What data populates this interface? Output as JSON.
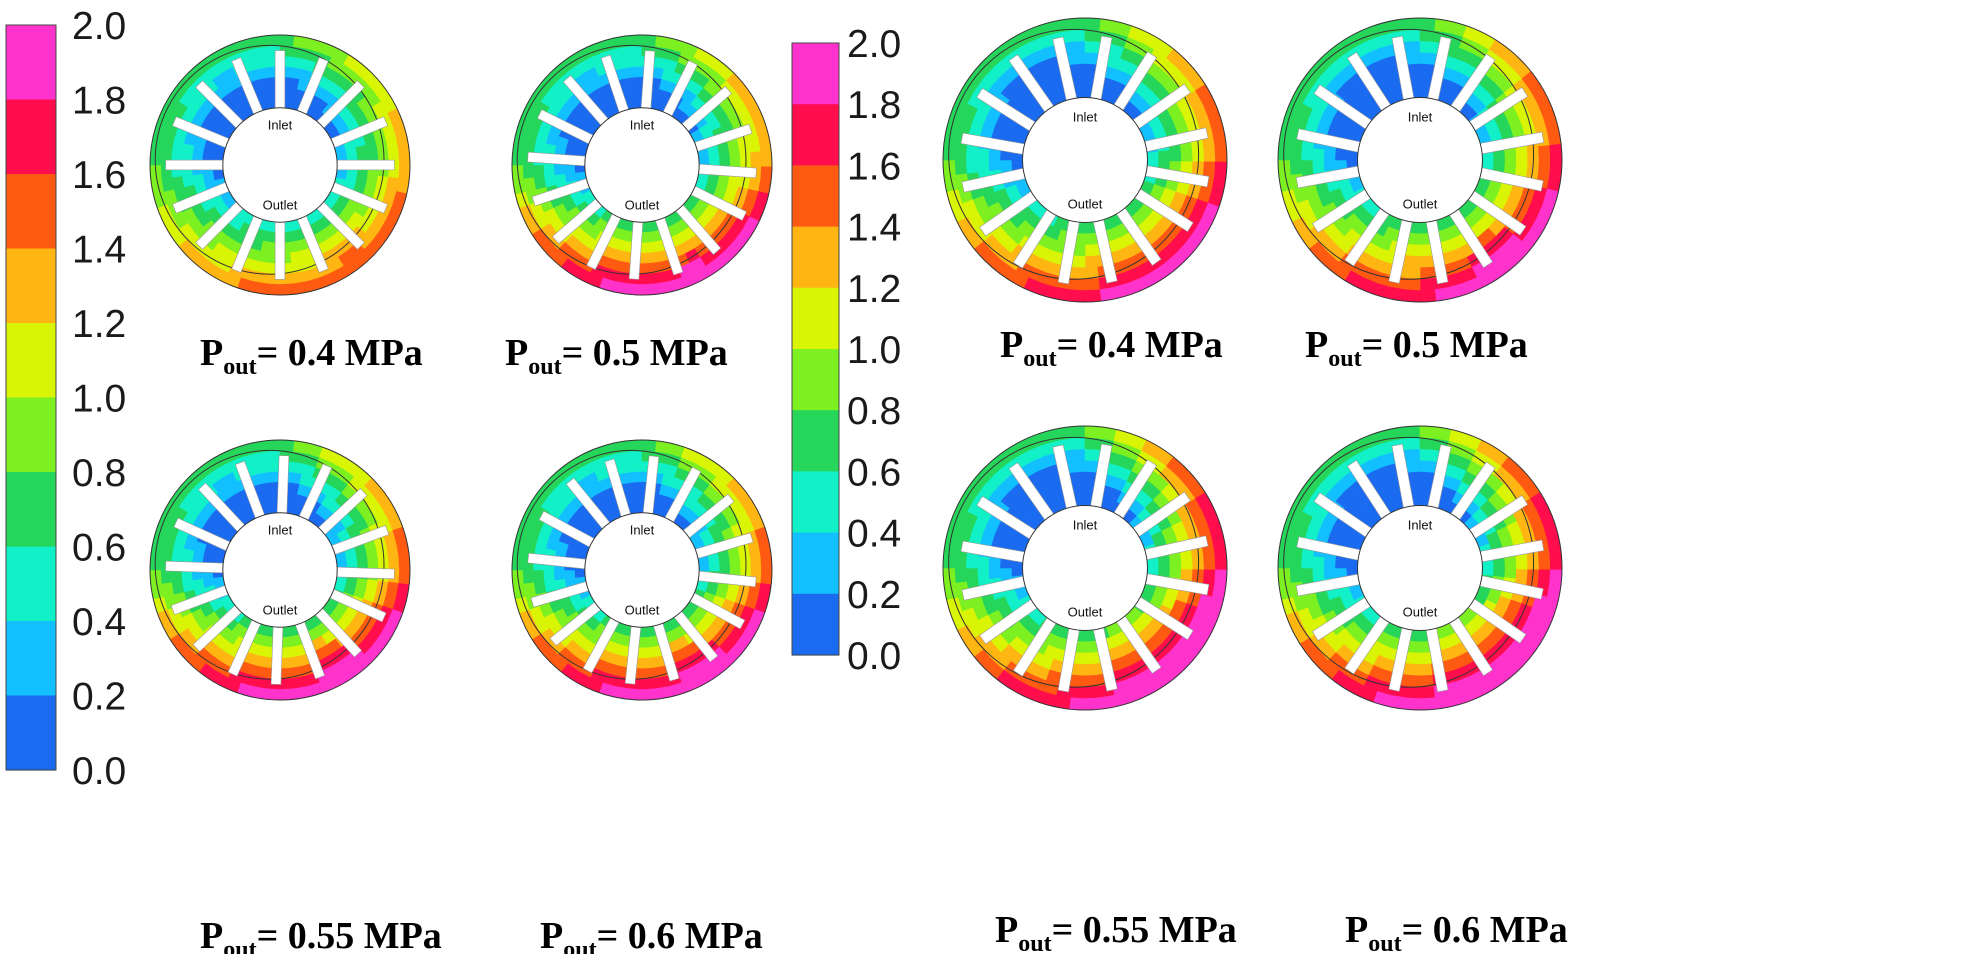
{
  "colorbar": {
    "ticks": [
      "2.0",
      "1.8",
      "1.6",
      "1.4",
      "1.2",
      "1.0",
      "0.8",
      "0.6",
      "0.4",
      "0.2",
      "0.0"
    ],
    "colors": [
      "#ff33cc",
      "#ff0d4d",
      "#ff5a12",
      "#ffb512",
      "#d9f505",
      "#7df021",
      "#25d65a",
      "#12f0c8",
      "#12bfff",
      "#1a6bf0"
    ]
  },
  "port_labels": {
    "inlet": "Inlet",
    "outlet": "Outlet"
  },
  "caption_symbol": {
    "base": "P",
    "sub": "out"
  },
  "panels": [
    {
      "id": "left-04",
      "value": "= 0.4 MPa"
    },
    {
      "id": "left-05",
      "value": "= 0.5 MPa"
    },
    {
      "id": "left-055",
      "value": "= 0.55 MPa"
    },
    {
      "id": "left-06",
      "value": "= 0.6 MPa"
    },
    {
      "id": "right-04",
      "value": "= 0.4 MPa"
    },
    {
      "id": "right-05",
      "value": "= 0.5 MPa"
    },
    {
      "id": "right-055",
      "value": "= 0.55 MPa"
    },
    {
      "id": "right-06",
      "value": "= 0.6 MPa"
    }
  ]
}
